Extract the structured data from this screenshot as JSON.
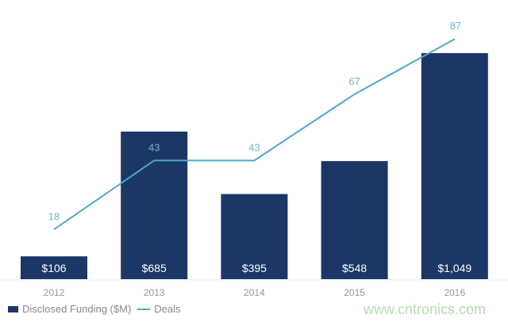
{
  "chart_data": {
    "type": "bar",
    "categories": [
      "2012",
      "2013",
      "2014",
      "2015",
      "2016"
    ],
    "series": [
      {
        "name": "Disclosed Funding ($M)",
        "type": "bar",
        "values": [
          106,
          685,
          395,
          548,
          1049
        ],
        "labels": [
          "$106",
          "$685",
          "$395",
          "$548",
          "$1,049"
        ],
        "color": "#1b3766"
      },
      {
        "name": "Deals",
        "type": "line",
        "values": [
          18,
          43,
          43,
          67,
          87
        ],
        "labels": [
          "18",
          "43",
          "43",
          "67",
          "87"
        ],
        "color": "#4fa9c9"
      }
    ],
    "legend": "bottom-left",
    "grid": false
  },
  "watermark": "www.cntronics.com"
}
